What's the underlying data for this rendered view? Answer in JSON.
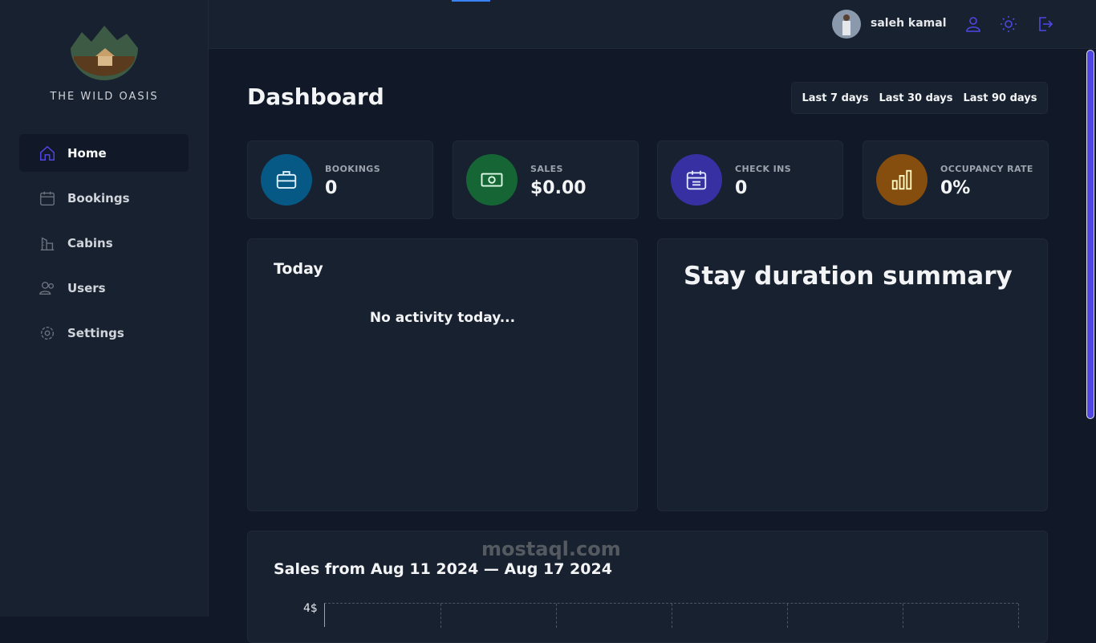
{
  "brand": {
    "name": "THE WILD OASIS"
  },
  "sidebar": {
    "items": [
      {
        "label": "Home",
        "icon": "home-icon",
        "active": true
      },
      {
        "label": "Bookings",
        "icon": "calendar-icon"
      },
      {
        "label": "Cabins",
        "icon": "building-icon"
      },
      {
        "label": "Users",
        "icon": "users-icon"
      },
      {
        "label": "Settings",
        "icon": "gear-icon"
      }
    ]
  },
  "header": {
    "user_name": "saleh kamal",
    "icons": [
      "user-icon",
      "sun-icon",
      "logout-icon"
    ]
  },
  "main": {
    "title": "Dashboard",
    "filters": [
      "Last 7 days",
      "Last 30 days",
      "Last 90 days"
    ],
    "stats": [
      {
        "label": "BOOKINGS",
        "value": "0",
        "color": "#075985"
      },
      {
        "label": "SALES",
        "value": "$0.00",
        "color": "#166534"
      },
      {
        "label": "CHECK INS",
        "value": "0",
        "color": "#3730a3"
      },
      {
        "label": "OCCUPANCY RATE",
        "value": "0%",
        "color": "#854d0e"
      }
    ],
    "today": {
      "title": "Today",
      "empty": "No activity today..."
    },
    "duration": {
      "title": "Stay duration summary"
    },
    "sales": {
      "title": "Sales from Aug 11 2024 — Aug 17 2024",
      "y_tick": "4$"
    }
  },
  "watermark": "mostaql.com",
  "accent": "#4f46e5"
}
